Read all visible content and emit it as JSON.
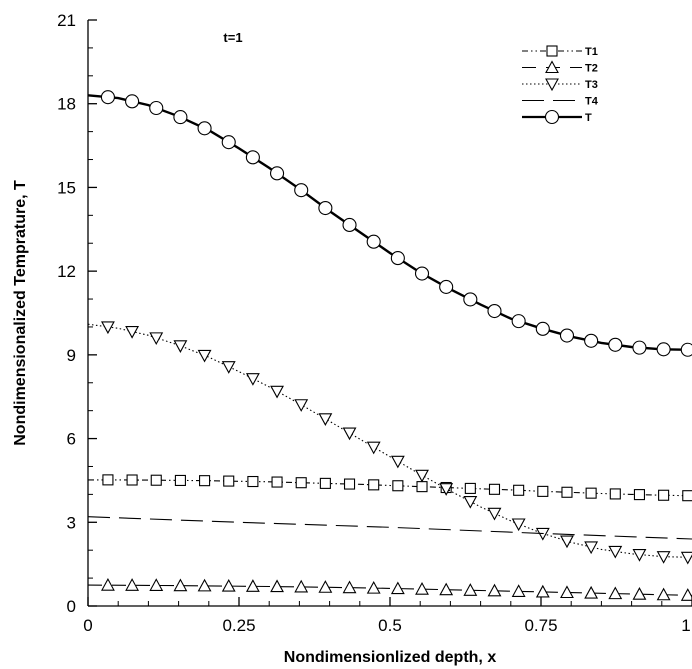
{
  "chart_data": {
    "type": "line",
    "title": "",
    "annotation": "t=1",
    "xlabel": "Nondimensionlized depth, x",
    "ylabel": "Nondimensionalized Temprature, T",
    "xlim": [
      0,
      1
    ],
    "ylim": [
      0,
      21
    ],
    "x_ticks": [
      0,
      0.25,
      0.5,
      0.75,
      1
    ],
    "x_tick_labels": [
      "0",
      "0.25",
      "0.5",
      "0.75",
      "1"
    ],
    "y_ticks": [
      0,
      3,
      6,
      9,
      12,
      15,
      18,
      21
    ],
    "y_tick_labels": [
      "0",
      "3",
      "6",
      "9",
      "12",
      "15",
      "18",
      "21"
    ],
    "grid": false,
    "legend_position": "top-right",
    "series": [
      {
        "name": "T1",
        "line": "dash-dot-dot",
        "marker": "square",
        "x": [
          0.0,
          0.05,
          0.1,
          0.15,
          0.2,
          0.25,
          0.3,
          0.35,
          0.4,
          0.45,
          0.5,
          0.55,
          0.6,
          0.65,
          0.7,
          0.75,
          0.8,
          0.85,
          0.9,
          0.95,
          1.0
        ],
        "y": [
          4.52,
          4.52,
          4.51,
          4.5,
          4.49,
          4.47,
          4.45,
          4.42,
          4.39,
          4.36,
          4.32,
          4.28,
          4.24,
          4.2,
          4.16,
          4.11,
          4.07,
          4.03,
          4.0,
          3.97,
          3.95
        ],
        "marker_x": [
          0.033,
          0.073,
          0.113,
          0.153,
          0.193,
          0.233,
          0.273,
          0.313,
          0.353,
          0.393,
          0.433,
          0.473,
          0.513,
          0.553,
          0.593,
          0.633,
          0.673,
          0.713,
          0.753,
          0.793,
          0.833,
          0.873,
          0.913,
          0.953,
          0.993
        ]
      },
      {
        "name": "T2",
        "line": "long-dash",
        "marker": "triangle-up",
        "x": [
          0.0,
          0.1,
          0.2,
          0.3,
          0.4,
          0.5,
          0.6,
          0.7,
          0.8,
          0.9,
          1.0
        ],
        "y": [
          0.75,
          0.74,
          0.72,
          0.7,
          0.67,
          0.63,
          0.58,
          0.53,
          0.48,
          0.43,
          0.38
        ],
        "marker_x": [
          0.033,
          0.073,
          0.113,
          0.153,
          0.193,
          0.233,
          0.273,
          0.313,
          0.353,
          0.393,
          0.433,
          0.473,
          0.513,
          0.553,
          0.593,
          0.633,
          0.673,
          0.713,
          0.753,
          0.793,
          0.833,
          0.873,
          0.913,
          0.953,
          0.993
        ]
      },
      {
        "name": "T3",
        "line": "dotted",
        "marker": "triangle-down",
        "x": [
          0.0,
          0.05,
          0.1,
          0.15,
          0.2,
          0.25,
          0.3,
          0.35,
          0.4,
          0.45,
          0.5,
          0.55,
          0.6,
          0.65,
          0.7,
          0.75,
          0.8,
          0.85,
          0.9,
          0.95,
          1.0
        ],
        "y": [
          10.1,
          9.95,
          9.7,
          9.35,
          8.92,
          8.4,
          7.85,
          7.25,
          6.62,
          5.98,
          5.35,
          4.72,
          4.12,
          3.55,
          3.05,
          2.62,
          2.28,
          2.03,
          1.87,
          1.77,
          1.74
        ],
        "marker_x": [
          0.033,
          0.073,
          0.113,
          0.153,
          0.193,
          0.233,
          0.273,
          0.313,
          0.353,
          0.393,
          0.433,
          0.473,
          0.513,
          0.553,
          0.593,
          0.633,
          0.673,
          0.713,
          0.753,
          0.793,
          0.833,
          0.873,
          0.913,
          0.953,
          0.993
        ]
      },
      {
        "name": "T4",
        "line": "dashed",
        "marker": "none",
        "x": [
          0.0,
          0.25,
          0.5,
          0.75,
          1.0
        ],
        "y": [
          3.2,
          3.0,
          2.82,
          2.6,
          2.4
        ]
      },
      {
        "name": "T",
        "line": "solid-bold",
        "marker": "circle",
        "x": [
          0.0,
          0.05,
          0.1,
          0.15,
          0.2,
          0.25,
          0.3,
          0.35,
          0.4,
          0.45,
          0.5,
          0.55,
          0.6,
          0.65,
          0.7,
          0.75,
          0.8,
          0.85,
          0.9,
          0.95,
          1.0
        ],
        "y": [
          18.3,
          18.2,
          17.95,
          17.55,
          17.05,
          16.4,
          15.7,
          14.95,
          14.15,
          13.4,
          12.65,
          11.95,
          11.35,
          10.8,
          10.3,
          9.95,
          9.65,
          9.43,
          9.28,
          9.2,
          9.18
        ],
        "marker_x": [
          0.033,
          0.073,
          0.113,
          0.153,
          0.193,
          0.233,
          0.273,
          0.313,
          0.353,
          0.393,
          0.433,
          0.473,
          0.513,
          0.553,
          0.593,
          0.633,
          0.673,
          0.713,
          0.753,
          0.793,
          0.833,
          0.873,
          0.913,
          0.953,
          0.993
        ]
      }
    ]
  }
}
